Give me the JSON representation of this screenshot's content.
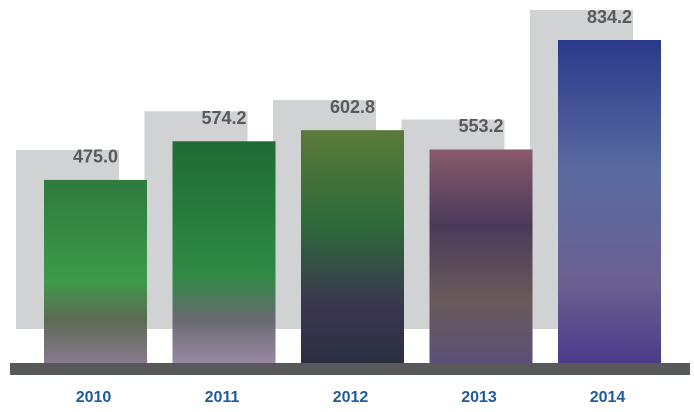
{
  "chart_data": {
    "type": "bar",
    "categories": [
      "2010",
      "2011",
      "2012",
      "2013",
      "2014"
    ],
    "values": [
      475.0,
      574.2,
      602.8,
      553.2,
      834.2
    ],
    "value_labels": [
      "475.0",
      "574.2",
      "602.8",
      "553.2",
      "834.2"
    ]
  }
}
